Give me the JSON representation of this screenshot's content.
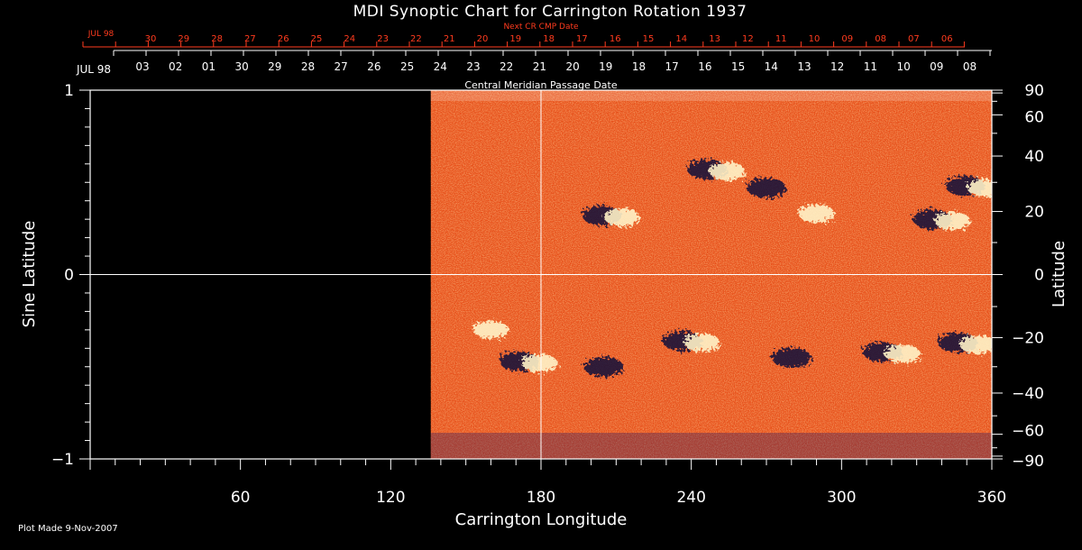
{
  "chart_data": {
    "type": "heatmap",
    "title": "MDI Synoptic Chart for Carrington Rotation 1937",
    "xlabel": "Carrington Longitude",
    "ylabel_left": "Sine Latitude",
    "ylabel_right": "Latitude",
    "xlim": [
      0,
      360
    ],
    "ylim": [
      -1,
      1
    ],
    "x_ticks": [
      60,
      120,
      180,
      240,
      300,
      360
    ],
    "y_ticks_left": [
      {
        "value": 1,
        "label": "1"
      },
      {
        "value": 0,
        "label": "0"
      },
      {
        "value": -1,
        "label": "−1"
      }
    ],
    "lat_ticks_right": [
      {
        "deg": 90,
        "label": "90"
      },
      {
        "deg": 60,
        "label": "60"
      },
      {
        "deg": 40,
        "label": "40"
      },
      {
        "deg": 20,
        "label": "20"
      },
      {
        "deg": 0,
        "label": "0"
      },
      {
        "deg": -20,
        "label": "−20"
      },
      {
        "deg": -40,
        "label": "−40"
      },
      {
        "deg": -60,
        "label": "−60"
      },
      {
        "deg": -90,
        "label": "−90"
      }
    ],
    "cmp_dates_label": "Central Meridian Passage Date",
    "cmp_dates": [
      "03",
      "02",
      "01",
      "30",
      "29",
      "28",
      "27",
      "26",
      "25",
      "24",
      "23",
      "22",
      "21",
      "20",
      "19",
      "18",
      "17",
      "16",
      "15",
      "14",
      "13",
      "12",
      "11",
      "10",
      "09",
      "08"
    ],
    "cmp_month": "JUL 98",
    "next_cr_label": "Next CR CMP Date",
    "next_cr_dates": [
      "30",
      "29",
      "28",
      "27",
      "26",
      "25",
      "24",
      "23",
      "22",
      "21",
      "20",
      "19",
      "18",
      "17",
      "16",
      "15",
      "14",
      "13",
      "12",
      "11",
      "10",
      "09",
      "08",
      "07",
      "06"
    ],
    "next_cr_month": "JUL 98",
    "data_start_longitude": 136,
    "meridian_longitude": 180,
    "equator_sinlat": 0,
    "active_regions": [
      {
        "lon": 208,
        "sinlat": 0.32,
        "polarity": "bipolar"
      },
      {
        "lon": 250,
        "sinlat": 0.57,
        "polarity": "bipolar"
      },
      {
        "lon": 270,
        "sinlat": 0.47,
        "polarity": "negative"
      },
      {
        "lon": 290,
        "sinlat": 0.34,
        "polarity": "positive"
      },
      {
        "lon": 340,
        "sinlat": 0.3,
        "polarity": "bipolar"
      },
      {
        "lon": 353,
        "sinlat": 0.48,
        "polarity": "bipolar"
      },
      {
        "lon": 160,
        "sinlat": -0.29,
        "polarity": "positive"
      },
      {
        "lon": 175,
        "sinlat": -0.47,
        "polarity": "bipolar"
      },
      {
        "lon": 240,
        "sinlat": -0.36,
        "polarity": "bipolar"
      },
      {
        "lon": 280,
        "sinlat": -0.45,
        "polarity": "negative"
      },
      {
        "lon": 320,
        "sinlat": -0.42,
        "polarity": "bipolar"
      },
      {
        "lon": 350,
        "sinlat": -0.37,
        "polarity": "bipolar"
      },
      {
        "lon": 205,
        "sinlat": -0.5,
        "polarity": "negative"
      }
    ]
  },
  "footer": {
    "plot_made": "Plot Made  9-Nov-2007"
  },
  "colors": {
    "background": "#000000",
    "field_base": "#e8501a",
    "positive": "#fff3c8",
    "negative": "#120a3a",
    "accent_red": "#ff3b1e",
    "axis": "#ffffff"
  }
}
